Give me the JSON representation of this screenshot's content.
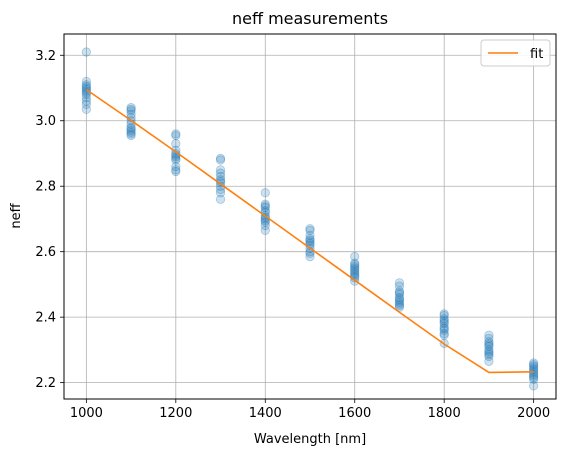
{
  "chart_data": {
    "type": "scatter",
    "title": "neff measurements",
    "xlabel": "Wavelength [nm]",
    "ylabel": "neff",
    "xlim": [
      950,
      2050
    ],
    "ylim": [
      2.15,
      3.265
    ],
    "x_ticks": [
      1000,
      1200,
      1400,
      1600,
      1800,
      2000
    ],
    "x_tick_labels": [
      "1000",
      "1200",
      "1400",
      "1600",
      "1800",
      "2000"
    ],
    "y_ticks": [
      2.2,
      2.4,
      2.6,
      2.8,
      3.0,
      3.2
    ],
    "y_tick_labels": [
      "2.2",
      "2.4",
      "2.6",
      "2.8",
      "3.0",
      "3.2"
    ],
    "grid": true,
    "legend_position": "top-right",
    "scatter": {
      "color": "#1f77b4",
      "points": [
        [
          1000,
          3.21
        ],
        [
          1000,
          3.12
        ],
        [
          1000,
          3.11
        ],
        [
          1000,
          3.105
        ],
        [
          1000,
          3.1
        ],
        [
          1000,
          3.095
        ],
        [
          1000,
          3.09
        ],
        [
          1000,
          3.085
        ],
        [
          1000,
          3.08
        ],
        [
          1000,
          3.07
        ],
        [
          1000,
          3.06
        ],
        [
          1000,
          3.05
        ],
        [
          1000,
          3.035
        ],
        [
          1100,
          3.04
        ],
        [
          1100,
          3.035
        ],
        [
          1100,
          3.03
        ],
        [
          1100,
          3.02
        ],
        [
          1100,
          3.01
        ],
        [
          1100,
          3.0
        ],
        [
          1100,
          2.99
        ],
        [
          1100,
          2.98
        ],
        [
          1100,
          2.975
        ],
        [
          1100,
          2.97
        ],
        [
          1100,
          2.965
        ],
        [
          1100,
          2.96
        ],
        [
          1100,
          2.955
        ],
        [
          1200,
          2.96
        ],
        [
          1200,
          2.955
        ],
        [
          1200,
          2.93
        ],
        [
          1200,
          2.91
        ],
        [
          1200,
          2.9
        ],
        [
          1200,
          2.895
        ],
        [
          1200,
          2.89
        ],
        [
          1200,
          2.885
        ],
        [
          1200,
          2.88
        ],
        [
          1200,
          2.86
        ],
        [
          1200,
          2.85
        ],
        [
          1200,
          2.845
        ],
        [
          1300,
          2.885
        ],
        [
          1300,
          2.88
        ],
        [
          1300,
          2.85
        ],
        [
          1300,
          2.84
        ],
        [
          1300,
          2.83
        ],
        [
          1300,
          2.82
        ],
        [
          1300,
          2.815
        ],
        [
          1300,
          2.81
        ],
        [
          1300,
          2.8
        ],
        [
          1300,
          2.79
        ],
        [
          1300,
          2.78
        ],
        [
          1300,
          2.76
        ],
        [
          1400,
          2.78
        ],
        [
          1400,
          2.745
        ],
        [
          1400,
          2.74
        ],
        [
          1400,
          2.735
        ],
        [
          1400,
          2.725
        ],
        [
          1400,
          2.72
        ],
        [
          1400,
          2.71
        ],
        [
          1400,
          2.705
        ],
        [
          1400,
          2.7
        ],
        [
          1400,
          2.695
        ],
        [
          1400,
          2.69
        ],
        [
          1400,
          2.68
        ],
        [
          1400,
          2.665
        ],
        [
          1500,
          2.67
        ],
        [
          1500,
          2.665
        ],
        [
          1500,
          2.65
        ],
        [
          1500,
          2.64
        ],
        [
          1500,
          2.635
        ],
        [
          1500,
          2.63
        ],
        [
          1500,
          2.625
        ],
        [
          1500,
          2.62
        ],
        [
          1500,
          2.61
        ],
        [
          1500,
          2.6
        ],
        [
          1500,
          2.595
        ],
        [
          1500,
          2.585
        ],
        [
          1600,
          2.585
        ],
        [
          1600,
          2.565
        ],
        [
          1600,
          2.56
        ],
        [
          1600,
          2.555
        ],
        [
          1600,
          2.55
        ],
        [
          1600,
          2.545
        ],
        [
          1600,
          2.54
        ],
        [
          1600,
          2.535
        ],
        [
          1600,
          2.53
        ],
        [
          1600,
          2.525
        ],
        [
          1600,
          2.52
        ],
        [
          1600,
          2.51
        ],
        [
          1700,
          2.505
        ],
        [
          1700,
          2.495
        ],
        [
          1700,
          2.48
        ],
        [
          1700,
          2.475
        ],
        [
          1700,
          2.47
        ],
        [
          1700,
          2.46
        ],
        [
          1700,
          2.455
        ],
        [
          1700,
          2.45
        ],
        [
          1700,
          2.445
        ],
        [
          1700,
          2.44
        ],
        [
          1700,
          2.435
        ],
        [
          1700,
          2.43
        ],
        [
          1800,
          2.41
        ],
        [
          1800,
          2.405
        ],
        [
          1800,
          2.395
        ],
        [
          1800,
          2.39
        ],
        [
          1800,
          2.385
        ],
        [
          1800,
          2.38
        ],
        [
          1800,
          2.37
        ],
        [
          1800,
          2.365
        ],
        [
          1800,
          2.36
        ],
        [
          1800,
          2.35
        ],
        [
          1800,
          2.345
        ],
        [
          1800,
          2.32
        ],
        [
          1900,
          2.345
        ],
        [
          1900,
          2.335
        ],
        [
          1900,
          2.325
        ],
        [
          1900,
          2.32
        ],
        [
          1900,
          2.315
        ],
        [
          1900,
          2.31
        ],
        [
          1900,
          2.3
        ],
        [
          1900,
          2.295
        ],
        [
          1900,
          2.29
        ],
        [
          1900,
          2.285
        ],
        [
          1900,
          2.28
        ],
        [
          1900,
          2.265
        ],
        [
          2000,
          2.26
        ],
        [
          2000,
          2.255
        ],
        [
          2000,
          2.25
        ],
        [
          2000,
          2.245
        ],
        [
          2000,
          2.24
        ],
        [
          2000,
          2.235
        ],
        [
          2000,
          2.23
        ],
        [
          2000,
          2.225
        ],
        [
          2000,
          2.22
        ],
        [
          2000,
          2.215
        ],
        [
          2000,
          2.21
        ],
        [
          2000,
          2.19
        ]
      ]
    },
    "series": [
      {
        "name": "fit",
        "type": "line",
        "color": "#ff7f0e",
        "x": [
          1000,
          1100,
          1200,
          1300,
          1400,
          1500,
          1600,
          1700,
          1800,
          1900,
          2000
        ],
        "y": [
          3.095,
          3.001,
          2.905,
          2.807,
          2.709,
          2.611,
          2.513,
          2.415,
          2.318,
          2.231,
          2.233
        ]
      }
    ]
  }
}
